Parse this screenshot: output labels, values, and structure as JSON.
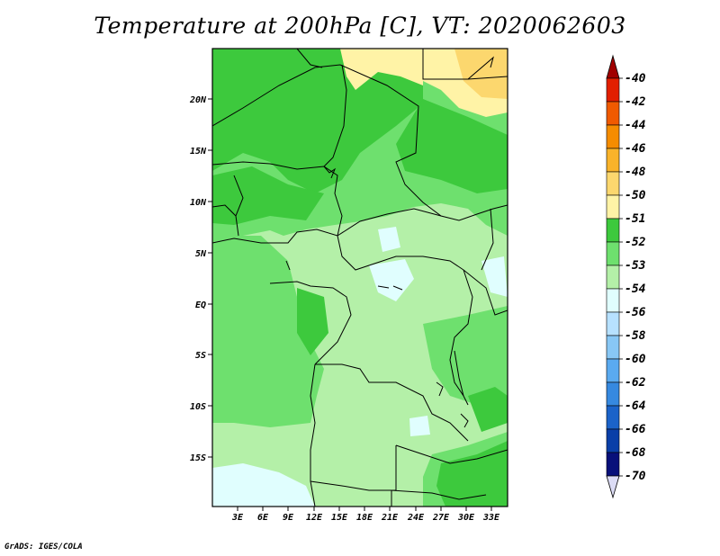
{
  "title": "Temperature at 200hPa [C], VT: 2020062603",
  "credit": "GrADS: IGES/COLA",
  "map": {
    "lat_ticks": [
      "20N",
      "15N",
      "10N",
      "5N",
      "EQ",
      "5S",
      "10S",
      "15S"
    ],
    "lon_ticks": [
      "3E",
      "6E",
      "9E",
      "12E",
      "15E",
      "18E",
      "21E",
      "24E",
      "27E",
      "30E",
      "33E"
    ]
  },
  "legend": {
    "labels": [
      "-40",
      "-42",
      "-44",
      "-46",
      "-48",
      "-50",
      "-51",
      "-52",
      "-53",
      "-54",
      "-56",
      "-58",
      "-60",
      "-62",
      "-64",
      "-66",
      "-68",
      "-70"
    ],
    "colors": [
      "#a00000",
      "#e21f00",
      "#f05a00",
      "#f58c00",
      "#f9b32a",
      "#fcd76e",
      "#fff3a6",
      "#3dc93d",
      "#6ee06e",
      "#b4f0a8",
      "#e0fefe",
      "#b7e1ff",
      "#88c7f5",
      "#5aaaf0",
      "#3689e0",
      "#1b63c9",
      "#0a3fa8",
      "#08107a",
      "#dcdcf5"
    ]
  }
}
